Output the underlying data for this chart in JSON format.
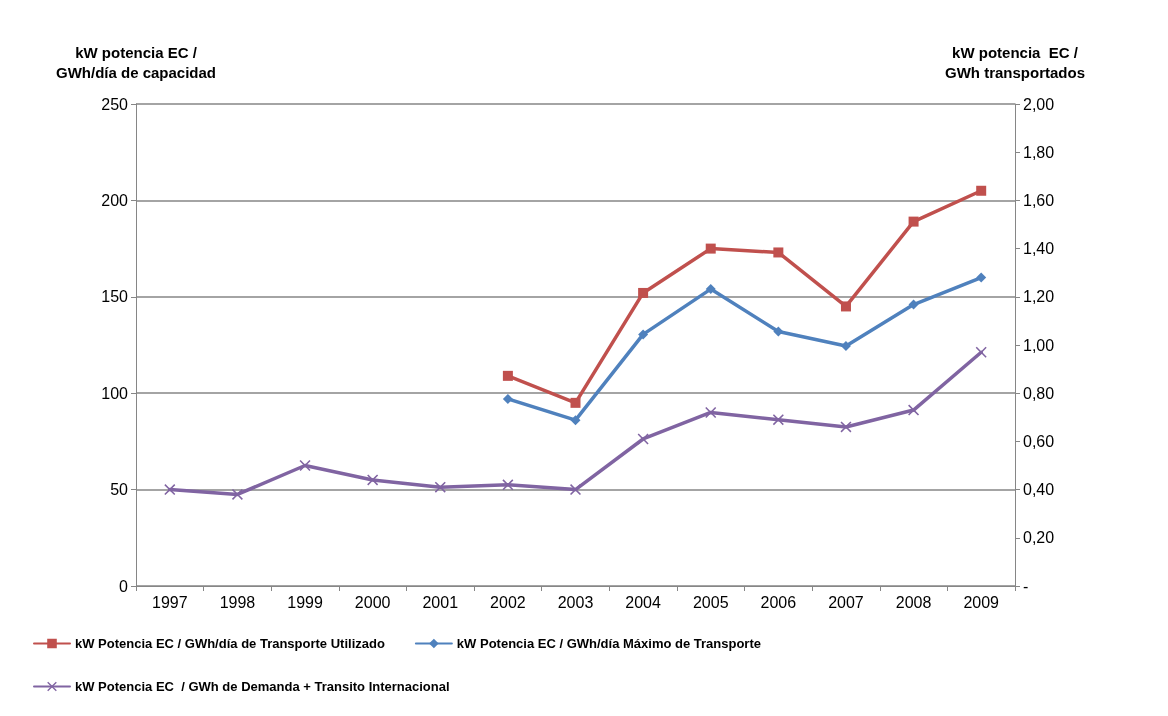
{
  "chart_data": {
    "type": "line",
    "categories": [
      "1997",
      "1998",
      "1999",
      "2000",
      "2001",
      "2002",
      "2003",
      "2004",
      "2005",
      "2006",
      "2007",
      "2008",
      "2009"
    ],
    "ylabel": "kW potencia EC /\nGWh/día de capacidad",
    "y2label": "kW potencia  EC /\nGWh transportados",
    "series": [
      {
        "name": "kW Potencia EC / GWh/día de Transporte Utilizado",
        "color": "#c0504d",
        "marker": "square",
        "values": [
          null,
          null,
          null,
          null,
          null,
          109,
          95,
          152,
          175,
          173,
          145,
          189,
          205
        ]
      },
      {
        "name": "kW Potencia EC / GWh/día Máximo de Transporte",
        "color": "#4f81bd",
        "marker": "diamond",
        "values": [
          null,
          null,
          null,
          null,
          null,
          97,
          86,
          130.5,
          154,
          132,
          124.5,
          146,
          160
        ]
      },
      {
        "name": "kW Potencia EC  / GWh de Demanda + Transito Internacional",
        "color": "#8064a2",
        "marker": "cross",
        "axis": "y2",
        "values": [
          0.4,
          0.38,
          0.5,
          0.44,
          0.41,
          0.42,
          0.4,
          0.61,
          0.72,
          0.69,
          0.66,
          0.73,
          0.97
        ]
      }
    ],
    "ylim": [
      0,
      250
    ],
    "yticks": [
      0,
      50,
      100,
      150,
      200,
      250
    ],
    "y2lim": [
      0,
      2
    ],
    "y2ticks": [
      {
        "value": 0,
        "label": "-"
      },
      {
        "value": 0.2,
        "label": "0,20"
      },
      {
        "value": 0.4,
        "label": "0,40"
      },
      {
        "value": 0.6,
        "label": "0,60"
      },
      {
        "value": 0.8,
        "label": "0,80"
      },
      {
        "value": 1,
        "label": "1,00"
      },
      {
        "value": 1.2,
        "label": "1,20"
      },
      {
        "value": 1.4,
        "label": "1,40"
      },
      {
        "value": 1.6,
        "label": "1,60"
      },
      {
        "value": 1.8,
        "label": "1,80"
      },
      {
        "value": 2,
        "label": "2,00"
      }
    ],
    "grid": "y",
    "legend": "bottom",
    "line_style": "solid"
  }
}
